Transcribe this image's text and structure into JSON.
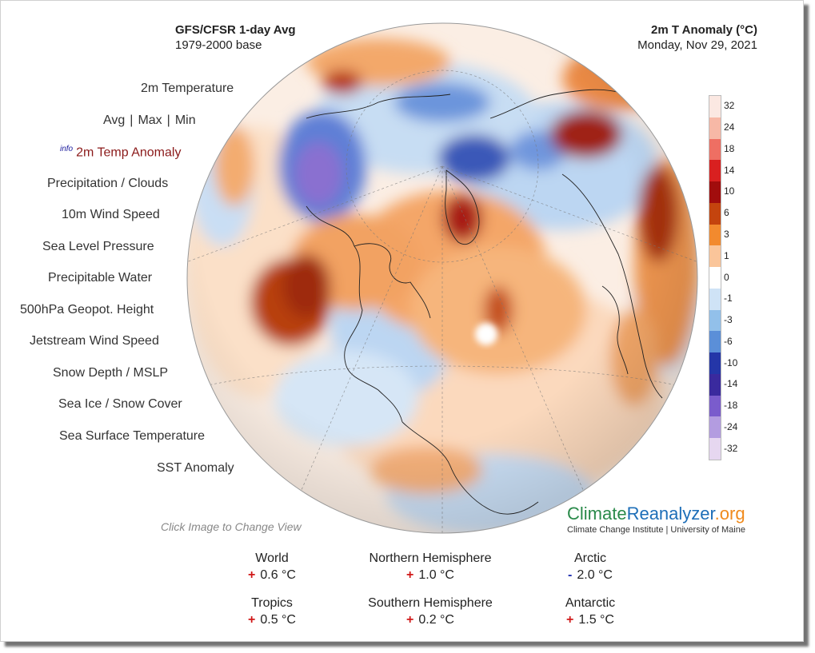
{
  "header": {
    "left_title": "GFS/CFSR 1-day Avg",
    "left_subtitle": "1979-2000 base",
    "right_title": "2m T Anomaly (°C)",
    "right_subtitle": "Monday, Nov 29, 2021"
  },
  "menu": {
    "temperature": "2m Temperature",
    "avg": "Avg",
    "max": "Max",
    "min": "Min",
    "sep": "|",
    "info": "info",
    "anomaly": "2m Temp Anomaly",
    "precip_clouds": "Precipitation / Clouds",
    "wind10m": "10m Wind Speed",
    "slp": "Sea Level Pressure",
    "precip_water": "Precipitable Water",
    "geopot500": "500hPa Geopot. Height",
    "jetstream": "Jetstream Wind Speed",
    "snow_mslp": "Snow Depth / MSLP",
    "seaice": "Sea Ice / Snow Cover",
    "sst": "Sea Surface Temperature",
    "sst_anom": "SST Anomaly"
  },
  "hint": "Click Image to Change View",
  "legend": {
    "labels": [
      "32",
      "24",
      "18",
      "14",
      "10",
      "6",
      "3",
      "1",
      "0",
      "-1",
      "-3",
      "-6",
      "-10",
      "-14",
      "-18",
      "-24",
      "-32"
    ],
    "colors": [
      "#fbe8e2",
      "#f7b8a6",
      "#ee6f63",
      "#d92020",
      "#a10d0d",
      "#c4440e",
      "#f28a2e",
      "#fac59a",
      "#ffffff",
      "#cfe3f6",
      "#92c0ea",
      "#5b8fd8",
      "#2436a8",
      "#3a2a9e",
      "#7a5ccc",
      "#b39ce0",
      "#e6d7f0"
    ]
  },
  "brand": {
    "a": "Climate",
    "b": "Reanalyzer",
    "c": ".org",
    "sub": "Climate Change Institute | University of Maine"
  },
  "stats": {
    "world": {
      "name": "World",
      "sign": "+",
      "value": "0.6 °C",
      "sign_color": "#d01818"
    },
    "nh": {
      "name": "Northern Hemisphere",
      "sign": "+",
      "value": "1.0 °C",
      "sign_color": "#d01818"
    },
    "arctic": {
      "name": "Arctic",
      "sign": "-",
      "value": "2.0 °C",
      "sign_color": "#2030b0"
    },
    "tropics": {
      "name": "Tropics",
      "sign": "+",
      "value": "0.5 °C",
      "sign_color": "#d01818"
    },
    "sh": {
      "name": "Southern Hemisphere",
      "sign": "+",
      "value": "0.2 °C",
      "sign_color": "#d01818"
    },
    "antarctic": {
      "name": "Antarctic",
      "sign": "+",
      "value": "1.5 °C",
      "sign_color": "#d01818"
    }
  }
}
